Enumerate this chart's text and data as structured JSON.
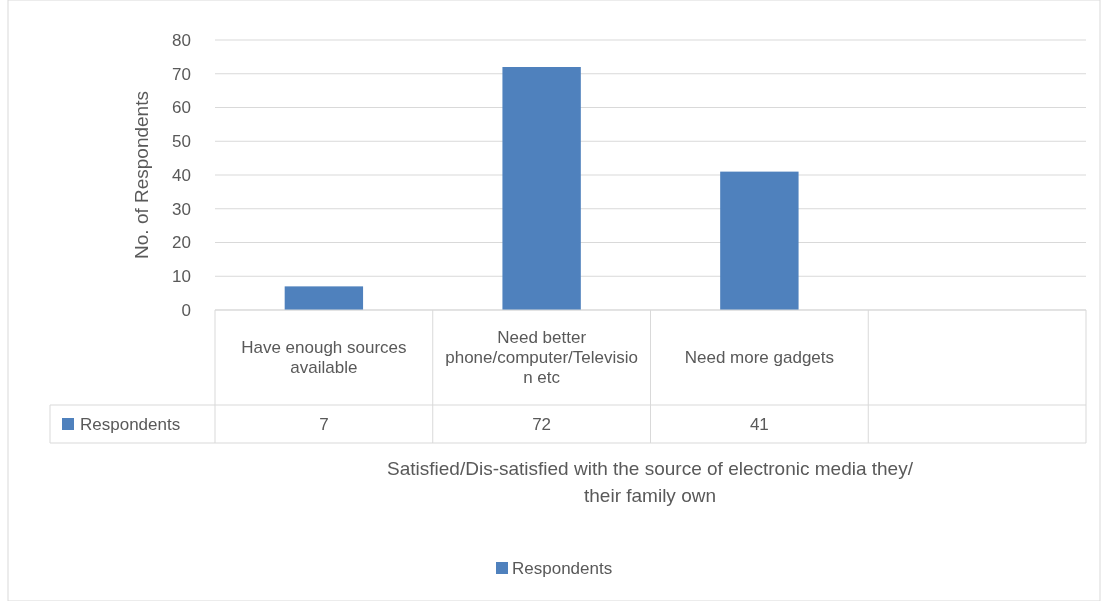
{
  "chart_data": {
    "type": "bar",
    "categories": [
      "Have enough sources available",
      "Need better phone/computer/Television etc",
      "Need more gadgets",
      null
    ],
    "series": [
      {
        "name": "Respondents",
        "color": "#4f81bd",
        "values": [
          7,
          72,
          41,
          null
        ]
      }
    ],
    "ylim": [
      0,
      80
    ],
    "yticks": [
      0,
      10,
      20,
      30,
      40,
      50,
      60,
      70,
      80
    ],
    "grid": "y",
    "data_labels": true,
    "legend": "bottom",
    "ylabel": "No. of Respondents",
    "xlabel": "Satisfied/Dis-satisfied with the source of electronic media they/ their family own"
  }
}
